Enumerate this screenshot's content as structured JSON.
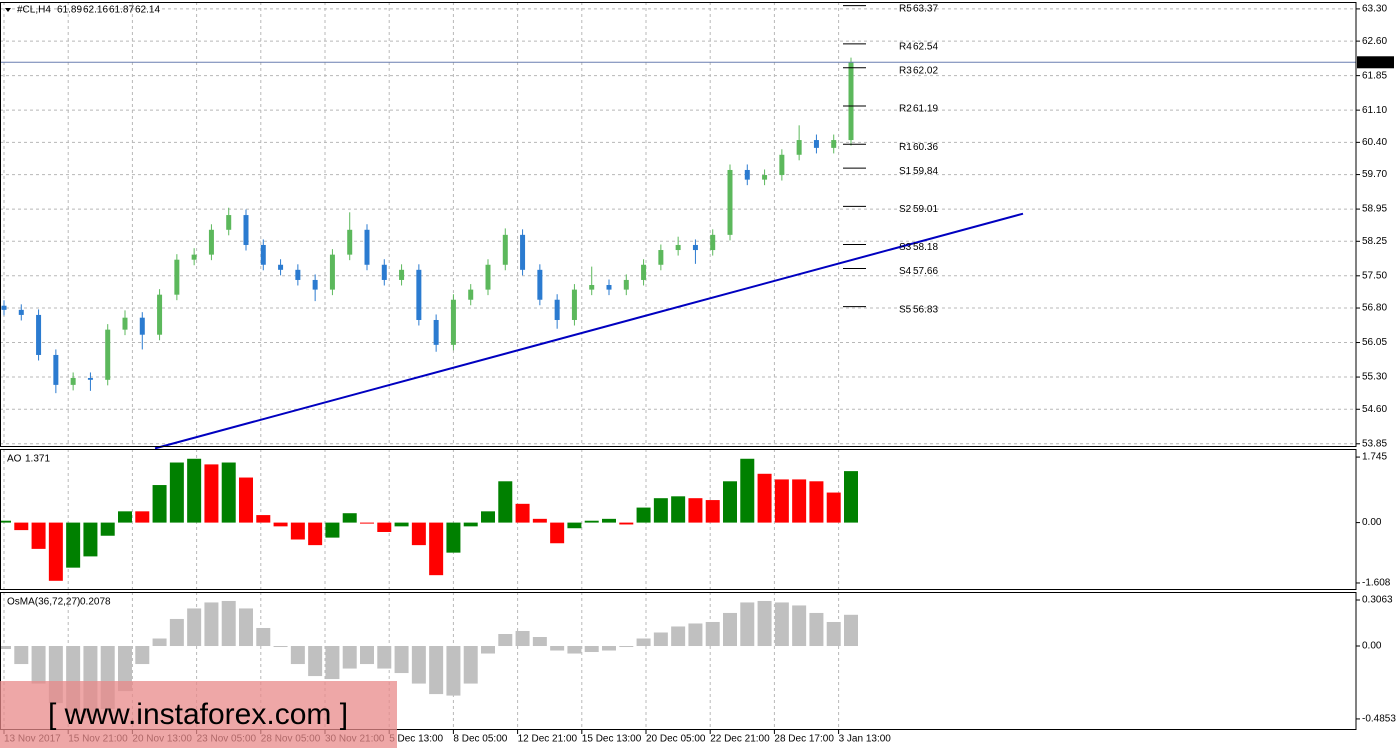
{
  "chart_data": [
    {
      "type": "candlestick",
      "symbol": "#CL,H4",
      "quote": [
        61.89,
        62.16,
        61.87,
        62.14
      ],
      "open": [
        56.85,
        56.76,
        56.65,
        55.78,
        55.13,
        55.28,
        55.24,
        56.33,
        56.59,
        56.22,
        57.09,
        57.85,
        57.96,
        58.5,
        58.82,
        58.17,
        57.74,
        57.63,
        57.41,
        57.2,
        57.96,
        58.5,
        57.74,
        57.41,
        57.63,
        56.54,
        56.0,
        56.98,
        57.2,
        57.74,
        58.39,
        57.63,
        56.98,
        56.54,
        57.2,
        57.3,
        57.2,
        57.41,
        57.74,
        58.06,
        58.17,
        58.06,
        58.39,
        59.8,
        59.59,
        59.69,
        60.13,
        60.45,
        60.28,
        60.45
      ],
      "high": [
        56.97,
        56.88,
        56.77,
        55.9,
        55.4,
        55.4,
        56.45,
        56.75,
        56.71,
        57.21,
        57.97,
        58.1,
        58.62,
        58.98,
        58.94,
        58.29,
        57.86,
        57.75,
        57.53,
        58.08,
        58.88,
        58.62,
        57.86,
        57.75,
        57.75,
        56.66,
        57.1,
        57.32,
        57.86,
        58.53,
        58.51,
        57.75,
        57.1,
        57.32,
        57.7,
        57.42,
        57.53,
        57.86,
        58.18,
        58.35,
        58.29,
        58.51,
        59.92,
        59.92,
        59.81,
        60.25,
        60.77,
        60.57,
        60.57,
        62.24
      ],
      "low": [
        56.64,
        56.53,
        55.66,
        54.95,
        55.01,
        55.0,
        55.12,
        56.21,
        55.9,
        56.1,
        56.97,
        57.73,
        57.84,
        58.38,
        58.05,
        57.62,
        57.51,
        57.29,
        56.95,
        57.08,
        57.84,
        57.62,
        57.29,
        57.29,
        56.42,
        55.85,
        55.88,
        56.86,
        57.08,
        57.62,
        57.51,
        56.86,
        56.35,
        56.42,
        57.08,
        57.08,
        57.08,
        57.29,
        57.62,
        57.94,
        57.76,
        57.94,
        58.27,
        59.47,
        59.47,
        59.57,
        60.01,
        60.16,
        60.16,
        60.33
      ],
      "close": [
        56.76,
        56.65,
        55.78,
        55.13,
        55.28,
        55.24,
        56.33,
        56.59,
        56.22,
        57.09,
        57.85,
        57.96,
        58.5,
        58.82,
        58.17,
        57.74,
        57.63,
        57.41,
        57.2,
        57.96,
        58.5,
        57.74,
        57.41,
        57.63,
        56.54,
        56.0,
        56.98,
        57.2,
        57.74,
        58.39,
        57.63,
        56.98,
        56.54,
        57.2,
        57.3,
        57.2,
        57.41,
        57.74,
        58.06,
        58.17,
        58.06,
        58.39,
        59.8,
        59.59,
        59.69,
        60.13,
        60.45,
        60.28,
        60.45,
        62.14
      ],
      "up_color": "#5cb85c",
      "down_color": "#2b7bd0",
      "ylim": [
        53.78,
        63.45
      ],
      "yticks": [
        {
          "value": 63.3,
          "label": "63.30"
        },
        {
          "value": 62.6,
          "label": "62.60"
        },
        61.85,
        {
          "value": 61.1,
          "label": "61.10"
        },
        {
          "value": 60.4,
          "label": "60.40"
        },
        {
          "value": 59.7,
          "label": "59.70"
        },
        58.95,
        58.25,
        {
          "value": 57.5,
          "label": "57.50"
        },
        {
          "value": 56.8,
          "label": "56.80"
        },
        56.05,
        {
          "value": 55.3,
          "label": "55.30"
        },
        {
          "value": 54.6,
          "label": "54.60"
        },
        53.85
      ],
      "grid": true,
      "price_line_color": "#6a7fb0",
      "pivots": [
        {
          "name": "R5",
          "value": 63.37
        },
        {
          "name": "R4",
          "value": 62.54
        },
        {
          "name": "R3",
          "value": 62.02
        },
        {
          "name": "R2",
          "value": 61.19
        },
        {
          "name": "R1",
          "value": 60.36
        },
        {
          "name": "S1",
          "value": 59.84
        },
        {
          "name": "S2",
          "value": 59.01
        },
        {
          "name": "S3",
          "value": 58.18
        },
        {
          "name": "S4",
          "value": 57.66
        },
        {
          "name": "S5",
          "value": 56.83
        }
      ],
      "trendline": {
        "color": "#0000c0",
        "values": [
          53.75,
          58.85
        ]
      },
      "x_axis_labels": [
        "13 Nov 2017",
        "15 Nov 21:00",
        "20 Nov 13:00",
        "23 Nov 05:00",
        "28 Nov 05:00",
        "30 Nov 21:00",
        "5 Dec 13:00",
        "8 Dec 05:00",
        "12 Dec 21:00",
        "15 Dec 13:00",
        "20 Dec 05:00",
        "22 Dec 21:00",
        "28 Dec 17:00",
        "3 Jan 13:00"
      ]
    },
    {
      "type": "ao",
      "label": "AO",
      "value": 1.371,
      "values": [
        0.05,
        -0.2,
        -0.7,
        -1.55,
        -1.2,
        -0.9,
        -0.35,
        0.3,
        0.3,
        1.0,
        1.6,
        1.7,
        1.55,
        1.6,
        1.2,
        0.2,
        -0.1,
        -0.45,
        -0.6,
        -0.4,
        0.25,
        0.0,
        -0.25,
        -0.1,
        -0.6,
        -1.4,
        -0.8,
        -0.1,
        0.3,
        1.1,
        0.5,
        0.1,
        -0.55,
        -0.15,
        0.05,
        0.1,
        -0.05,
        0.4,
        0.65,
        0.7,
        0.65,
        0.6,
        1.1,
        1.7,
        1.3,
        1.15,
        1.15,
        1.1,
        0.8,
        1.371
      ],
      "up_color": "#008000",
      "down_color": "#ff0000",
      "ylim": [
        -1.795,
        1.96
      ],
      "yticks": [
        1.745,
        {
          "value": 0,
          "label": "0.00"
        },
        -1.608
      ]
    },
    {
      "type": "osma",
      "label": "OsMA(36,72,27)",
      "value": 0.2078,
      "values": [
        -0.02,
        -0.12,
        -0.25,
        -0.38,
        -0.45,
        -0.48,
        -0.42,
        -0.3,
        -0.12,
        0.05,
        0.18,
        0.25,
        0.29,
        0.3,
        0.25,
        0.12,
        0.0,
        -0.12,
        -0.2,
        -0.22,
        -0.15,
        -0.12,
        -0.15,
        -0.18,
        -0.25,
        -0.32,
        -0.33,
        -0.25,
        -0.05,
        0.08,
        0.1,
        0.06,
        -0.03,
        -0.05,
        -0.04,
        -0.03,
        0.0,
        0.05,
        0.09,
        0.13,
        0.15,
        0.16,
        0.22,
        0.29,
        0.3,
        0.29,
        0.27,
        0.22,
        0.16,
        0.2078
      ],
      "color": "#c0c0c0",
      "ylim": [
        -0.559,
        0.3595
      ],
      "yticks": [
        0.3063,
        {
          "value": 0,
          "label": "0.00"
        },
        -0.4853
      ]
    }
  ],
  "watermark": "[ www.instaforex.com ]"
}
